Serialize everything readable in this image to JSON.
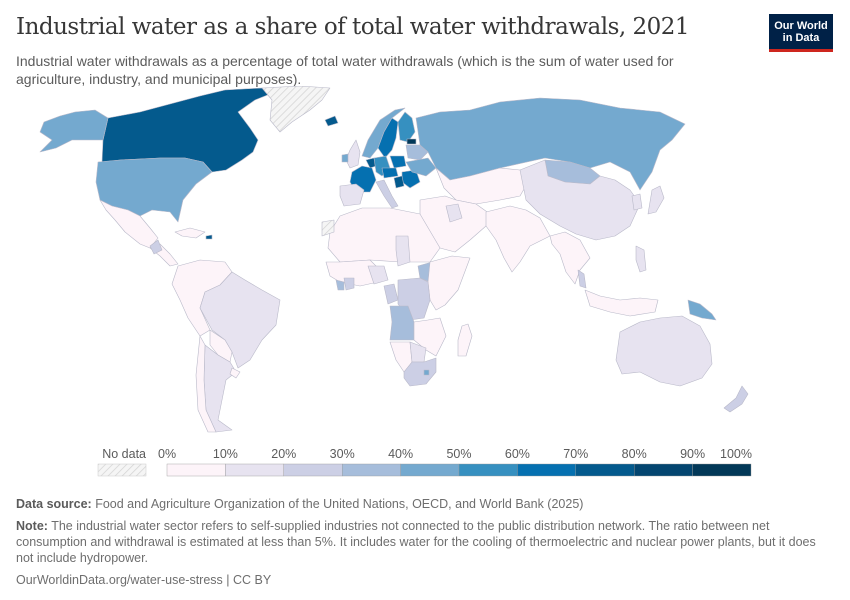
{
  "header": {
    "title": "Industrial water as a share of total water withdrawals, 2021",
    "subtitle": "Industrial water withdrawals as a percentage of total water withdrawals (which is the sum of water used for agriculture, industry, and municipal purposes).",
    "logo_line1": "Our World",
    "logo_line2": "in Data"
  },
  "chart_data": {
    "type": "choropleth",
    "title": "Industrial water as a share of total water withdrawals, 2021",
    "year": 2021,
    "unit": "%",
    "legend": {
      "no_data_label": "No data",
      "tick_labels": [
        "0%",
        "10%",
        "20%",
        "30%",
        "40%",
        "50%",
        "60%",
        "70%",
        "80%",
        "90%",
        "100%"
      ],
      "bins": [
        {
          "range": [
            0,
            10
          ],
          "color": "#fdf4f9"
        },
        {
          "range": [
            10,
            20
          ],
          "color": "#e7e3f0"
        },
        {
          "range": [
            20,
            30
          ],
          "color": "#cccfe5"
        },
        {
          "range": [
            30,
            40
          ],
          "color": "#a6bddb"
        },
        {
          "range": [
            40,
            50
          ],
          "color": "#74a9cf"
        },
        {
          "range": [
            50,
            60
          ],
          "color": "#3690c0"
        },
        {
          "range": [
            60,
            70
          ],
          "color": "#0570b0"
        },
        {
          "range": [
            70,
            80
          ],
          "color": "#045a8d"
        },
        {
          "range": [
            80,
            90
          ],
          "color": "#034570"
        },
        {
          "range": [
            90,
            100
          ],
          "color": "#023858"
        }
      ],
      "no_data_color": "#efefef"
    },
    "regions": [
      {
        "name": "Canada",
        "bin": "70-80%"
      },
      {
        "name": "United States",
        "bin": "40-50%"
      },
      {
        "name": "Alaska (United States)",
        "bin": "40-50%"
      },
      {
        "name": "Greenland",
        "bin": "No data"
      },
      {
        "name": "Mexico",
        "bin": "0-10%"
      },
      {
        "name": "Central America",
        "bin": "0-10%"
      },
      {
        "name": "Guatemala",
        "bin": "20-30%"
      },
      {
        "name": "Caribbean",
        "bin": "0-10%"
      },
      {
        "name": "Puerto Rico",
        "bin": "70-80%"
      },
      {
        "name": "Colombia/Venezuela/Ecuador/Peru",
        "bin": "0-10%"
      },
      {
        "name": "Suriname",
        "bin": "20-30%"
      },
      {
        "name": "Brazil",
        "bin": "10-20%"
      },
      {
        "name": "Bolivia/Paraguay",
        "bin": "0-10%"
      },
      {
        "name": "Argentina",
        "bin": "10-20%"
      },
      {
        "name": "Chile",
        "bin": "0-10%"
      },
      {
        "name": "Uruguay",
        "bin": "0-10%"
      },
      {
        "name": "Iceland",
        "bin": "70-80%"
      },
      {
        "name": "Norway",
        "bin": "40-50%"
      },
      {
        "name": "Sweden",
        "bin": "60-70%"
      },
      {
        "name": "Finland",
        "bin": "50-60%"
      },
      {
        "name": "Estonia",
        "bin": "90-100%"
      },
      {
        "name": "Belarus/Baltics",
        "bin": "30-40%"
      },
      {
        "name": "United Kingdom",
        "bin": "10-20%"
      },
      {
        "name": "Ireland",
        "bin": "40-50%"
      },
      {
        "name": "France",
        "bin": "60-70%"
      },
      {
        "name": "Belgium/Netherlands",
        "bin": "70-80%"
      },
      {
        "name": "Germany",
        "bin": "50-60%"
      },
      {
        "name": "Poland",
        "bin": "60-70%"
      },
      {
        "name": "Czechia/Austria",
        "bin": "60-70%"
      },
      {
        "name": "Romania/Bulgaria",
        "bin": "60-70%"
      },
      {
        "name": "Serbia",
        "bin": "70-80%"
      },
      {
        "name": "Ukraine",
        "bin": "40-50%"
      },
      {
        "name": "Italy",
        "bin": "20-30%"
      },
      {
        "name": "Spain/Portugal",
        "bin": "10-20%"
      },
      {
        "name": "Russia",
        "bin": "40-50%"
      },
      {
        "name": "Kazakhstan/Central Asia",
        "bin": "0-10%"
      },
      {
        "name": "Mongolia",
        "bin": "30-40%"
      },
      {
        "name": "China",
        "bin": "10-20%"
      },
      {
        "name": "Japan",
        "bin": "10-20%"
      },
      {
        "name": "Korea",
        "bin": "10-20%"
      },
      {
        "name": "Middle East",
        "bin": "0-10%"
      },
      {
        "name": "Iraq",
        "bin": "10-20%"
      },
      {
        "name": "India/South Asia",
        "bin": "0-10%"
      },
      {
        "name": "Southeast Asia",
        "bin": "0-10%"
      },
      {
        "name": "Malaysia",
        "bin": "20-30%"
      },
      {
        "name": "Philippines",
        "bin": "10-20%"
      },
      {
        "name": "Indonesia",
        "bin": "0-10%"
      },
      {
        "name": "Papua New Guinea",
        "bin": "40-50%"
      },
      {
        "name": "Australia",
        "bin": "10-20%"
      },
      {
        "name": "New Zealand",
        "bin": "20-30%"
      },
      {
        "name": "North Africa",
        "bin": "0-10%"
      },
      {
        "name": "Western Sahara",
        "bin": "No data"
      },
      {
        "name": "West Africa",
        "bin": "0-10%"
      },
      {
        "name": "Liberia",
        "bin": "30-40%"
      },
      {
        "name": "Cote d'Ivoire",
        "bin": "20-30%"
      },
      {
        "name": "Nigeria",
        "bin": "10-20%"
      },
      {
        "name": "Chad",
        "bin": "10-20%"
      },
      {
        "name": "South Sudan",
        "bin": "30-40%"
      },
      {
        "name": "East Africa",
        "bin": "0-10%"
      },
      {
        "name": "Gabon/Congo",
        "bin": "20-30%"
      },
      {
        "name": "DR Congo",
        "bin": "20-30%"
      },
      {
        "name": "Angola",
        "bin": "30-40%"
      },
      {
        "name": "Namibia",
        "bin": "0-10%"
      },
      {
        "name": "Zambia/Zimbabwe/Mozambique",
        "bin": "0-10%"
      },
      {
        "name": "Botswana",
        "bin": "10-20%"
      },
      {
        "name": "South Africa",
        "bin": "20-30%"
      },
      {
        "name": "Lesotho",
        "bin": "40-50%"
      },
      {
        "name": "Madagascar",
        "bin": "0-10%"
      }
    ]
  },
  "footer": {
    "source_label": "Data source:",
    "source_text": "Food and Agriculture Organization of the United Nations, OECD, and World Bank (2025)",
    "note_label": "Note:",
    "note_text": "The industrial water sector refers to self-supplied industries not connected to the public distribution network. The ratio between net consumption and withdrawal is estimated at less than 5%. It includes water for the cooling of thermoelectric and nuclear power plants, but it does not include hydropower.",
    "url_text": "OurWorldinData.org/water-use-stress | CC BY"
  }
}
